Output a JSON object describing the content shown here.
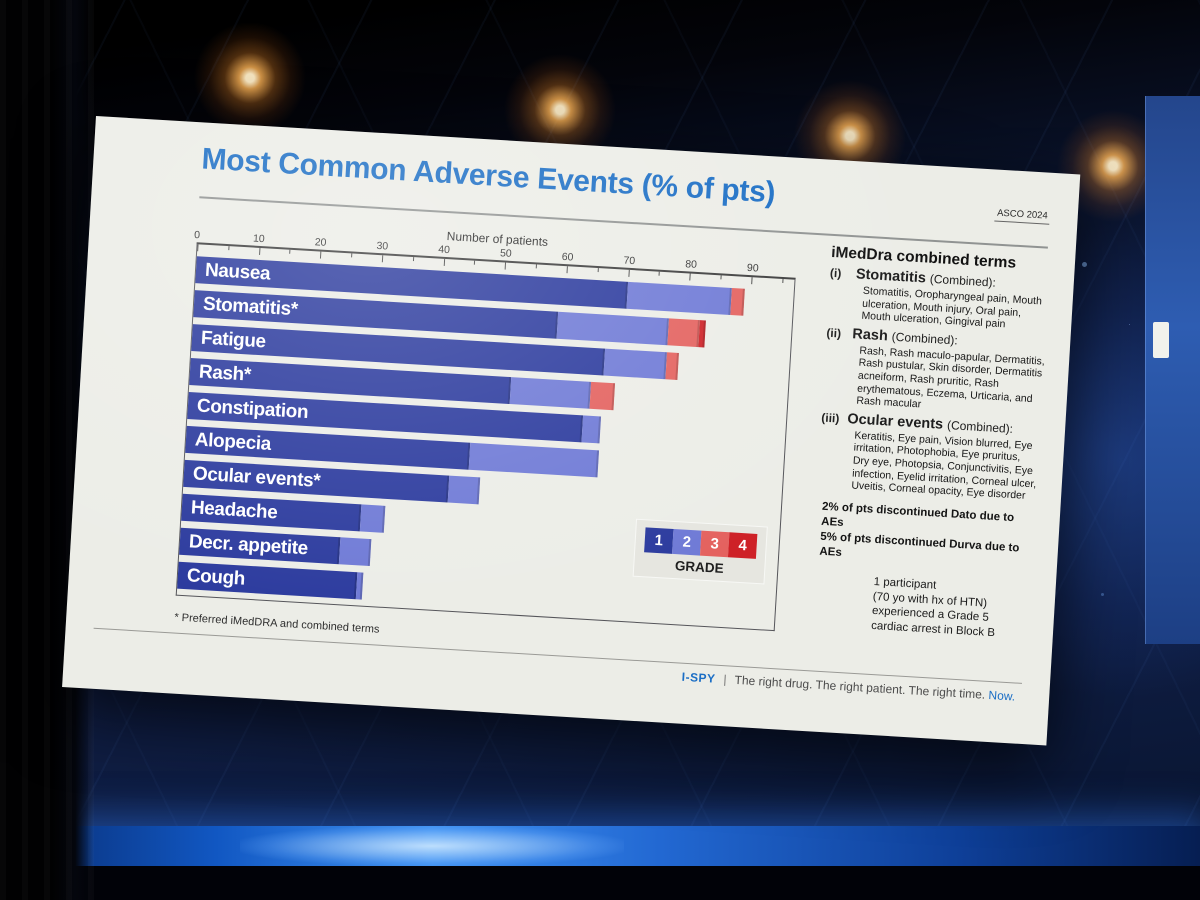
{
  "slide": {
    "title": "Most Common Adverse Events (% of pts)",
    "conference_label": "ASCO 2024",
    "footnote": "* Preferred iMedDRA and combined terms",
    "footer": {
      "brand": "I-SPY",
      "separator": "|",
      "tagline": "The right drug. The right patient. The right time.",
      "tagline_highlight": "Now."
    }
  },
  "chart_data": {
    "type": "bar",
    "orientation": "horizontal",
    "stacked": true,
    "axis_title": "Number of patients",
    "xlim": [
      0,
      97
    ],
    "xticks": [
      0,
      10,
      20,
      30,
      40,
      50,
      60,
      70,
      80,
      90
    ],
    "minor_tick_step": 5,
    "grid": false,
    "categories": [
      "Nausea",
      "Stomatitis*",
      "Fatigue",
      "Rash*",
      "Constipation",
      "Alopecia",
      "Ocular events*",
      "Headache",
      "Decr. appetite",
      "Cough"
    ],
    "series": [
      {
        "name": "Grade 1",
        "color": "#2c3b9e",
        "values": [
          70,
          59,
          67,
          52,
          64,
          46,
          43,
          29,
          26,
          29
        ]
      },
      {
        "name": "Grade 2",
        "color": "#6f7ad6",
        "values": [
          17,
          18,
          10,
          13,
          3,
          21,
          5,
          4,
          5,
          1
        ]
      },
      {
        "name": "Grade 3",
        "color": "#e4625f",
        "values": [
          2,
          5,
          2,
          4,
          0,
          0,
          0,
          0,
          0,
          0
        ]
      },
      {
        "name": "Grade 4",
        "color": "#ce2127",
        "values": [
          0,
          1,
          0,
          0,
          0,
          0,
          0,
          0,
          0,
          0
        ]
      }
    ],
    "legend": {
      "title": "GRADE",
      "position": "inside bottom-right",
      "entries": [
        {
          "label": "1",
          "color": "#2c3b9e"
        },
        {
          "label": "2",
          "color": "#6f7ad6"
        },
        {
          "label": "3",
          "color": "#e4625f"
        },
        {
          "label": "4",
          "color": "#ce2127"
        }
      ]
    }
  },
  "side_panel": {
    "heading": "iMedDra combined terms",
    "items": [
      {
        "marker": "(i)",
        "term": "Stomatitis",
        "suffix": "(Combined):",
        "detail": "Stomatitis, Oropharyngeal pain, Mouth ulceration, Mouth injury, Oral pain, Mouth ulceration, Gingival pain"
      },
      {
        "marker": "(ii)",
        "term": "Rash",
        "suffix": "(Combined):",
        "detail": "Rash, Rash maculo-papular, Dermatitis, Rash pustular, Skin disorder, Dermatitis acneiform, Rash pruritic, Rash erythematous, Eczema, Urticaria, and Rash macular"
      },
      {
        "marker": "(iii)",
        "term": "Ocular events",
        "suffix": "(Combined):",
        "detail": "Keratitis, Eye pain, Vision blurred, Eye irritation, Photophobia, Eye pruritus, Dry eye, Photopsia, Conjunctivitis, Eye infection, Eyelid irritation, Corneal ulcer, Uveitis, Corneal opacity, Eye disorder"
      }
    ],
    "discontinuation_notes": [
      "2% of pts discontinued Dato due to AEs",
      "5% of pts discontinued Durva due to AEs"
    ],
    "participant_note_lines": [
      "1 participant",
      "(70 yo with hx of HTN)",
      "experienced a Grade 5",
      "cardiac arrest in Block B"
    ]
  },
  "colors": {
    "title_blue": "#1b6ec5",
    "slide_background": "#ecede7",
    "grade1": "#2c3b9e",
    "grade2": "#6f7ad6",
    "grade3": "#e4625f",
    "grade4": "#ce2127"
  }
}
